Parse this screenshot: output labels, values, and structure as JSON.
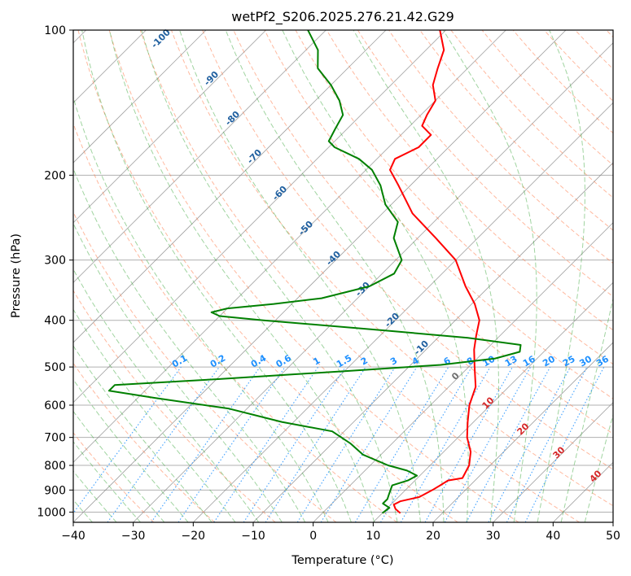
{
  "chart_data": {
    "type": "line",
    "subtype": "skew-t log-p diagram",
    "title": "wetPf2_S206.2025.276.21.42.G29",
    "xlabel": "Temperature (°C)",
    "ylabel": "Pressure (hPa)",
    "xlim": [
      -40,
      50
    ],
    "ylim": [
      1050,
      100
    ],
    "y_scale": "log",
    "x_ticks": [
      "−40",
      "−30",
      "−20",
      "−10",
      "0",
      "10",
      "20",
      "30",
      "40",
      "50"
    ],
    "x_tick_values": [
      -40,
      -30,
      -20,
      -10,
      0,
      10,
      20,
      30,
      40,
      50
    ],
    "y_ticks": [
      "100",
      "200",
      "300",
      "400",
      "500",
      "600",
      "700",
      "800",
      "900",
      "1000"
    ],
    "y_tick_values": [
      100,
      200,
      300,
      400,
      500,
      600,
      700,
      800,
      900,
      1000
    ],
    "grid": true,
    "colors": {
      "temperature": "#ff0000",
      "dewpoint": "#008000",
      "isotherm": "#808080",
      "dry_adiabat": "#ff7f50",
      "moist_adiabat": "#2ca02c",
      "mixing_ratio": "#1e90ff",
      "gridline": "#b0b0b0"
    },
    "series": [
      {
        "name": "",
        "role": "temperature",
        "points": [
          {
            "p": 1005,
            "t": 13
          },
          {
            "p": 985,
            "t": 11.5
          },
          {
            "p": 965,
            "t": 10.5
          },
          {
            "p": 950,
            "t": 11
          },
          {
            "p": 930,
            "t": 13.5
          },
          {
            "p": 900,
            "t": 14.5
          },
          {
            "p": 880,
            "t": 15
          },
          {
            "p": 860,
            "t": 15.5
          },
          {
            "p": 850,
            "t": 17.5
          },
          {
            "p": 800,
            "t": 16.5
          },
          {
            "p": 750,
            "t": 14.5
          },
          {
            "p": 700,
            "t": 11.5
          },
          {
            "p": 650,
            "t": 9
          },
          {
            "p": 600,
            "t": 6.5
          },
          {
            "p": 550,
            "t": 4.5
          },
          {
            "p": 500,
            "t": 1
          },
          {
            "p": 460,
            "t": -2
          },
          {
            "p": 430,
            "t": -4
          },
          {
            "p": 400,
            "t": -6
          },
          {
            "p": 370,
            "t": -9.5
          },
          {
            "p": 340,
            "t": -14
          },
          {
            "p": 300,
            "t": -20
          },
          {
            "p": 270,
            "t": -27
          },
          {
            "p": 240,
            "t": -35
          },
          {
            "p": 210,
            "t": -42
          },
          {
            "p": 195,
            "t": -46
          },
          {
            "p": 185,
            "t": -47
          },
          {
            "p": 175,
            "t": -45
          },
          {
            "p": 165,
            "t": -45
          },
          {
            "p": 158,
            "t": -48
          },
          {
            "p": 150,
            "t": -49
          },
          {
            "p": 140,
            "t": -50
          },
          {
            "p": 130,
            "t": -53
          },
          {
            "p": 120,
            "t": -55
          },
          {
            "p": 110,
            "t": -57
          },
          {
            "p": 100,
            "t": -61
          }
        ]
      },
      {
        "name": "",
        "role": "dewpoint",
        "points": [
          {
            "p": 1005,
            "t": 10
          },
          {
            "p": 980,
            "t": 10.3
          },
          {
            "p": 960,
            "t": 8.5
          },
          {
            "p": 940,
            "t": 8.5
          },
          {
            "p": 920,
            "t": 8
          },
          {
            "p": 900,
            "t": 7.5
          },
          {
            "p": 880,
            "t": 7
          },
          {
            "p": 860,
            "t": 8.8
          },
          {
            "p": 840,
            "t": 9.5
          },
          {
            "p": 820,
            "t": 7
          },
          {
            "p": 800,
            "t": 3
          },
          {
            "p": 760,
            "t": -3
          },
          {
            "p": 720,
            "t": -7
          },
          {
            "p": 680,
            "t": -12
          },
          {
            "p": 650,
            "t": -22
          },
          {
            "p": 610,
            "t": -33
          },
          {
            "p": 580,
            "t": -47
          },
          {
            "p": 560,
            "t": -56
          },
          {
            "p": 545,
            "t": -56
          },
          {
            "p": 530,
            "t": -40
          },
          {
            "p": 510,
            "t": -20
          },
          {
            "p": 495,
            "t": -5
          },
          {
            "p": 480,
            "t": 3
          },
          {
            "p": 465,
            "t": 6
          },
          {
            "p": 450,
            "t": 5
          },
          {
            "p": 435,
            "t": -5
          },
          {
            "p": 420,
            "t": -20
          },
          {
            "p": 400,
            "t": -42
          },
          {
            "p": 392,
            "t": -50
          },
          {
            "p": 385,
            "t": -52
          },
          {
            "p": 378,
            "t": -50
          },
          {
            "p": 370,
            "t": -43
          },
          {
            "p": 360,
            "t": -36
          },
          {
            "p": 340,
            "t": -30
          },
          {
            "p": 320,
            "t": -28
          },
          {
            "p": 300,
            "t": -29
          },
          {
            "p": 270,
            "t": -34
          },
          {
            "p": 250,
            "t": -36
          },
          {
            "p": 230,
            "t": -41
          },
          {
            "p": 210,
            "t": -45
          },
          {
            "p": 195,
            "t": -49
          },
          {
            "p": 185,
            "t": -53
          },
          {
            "p": 175,
            "t": -59
          },
          {
            "p": 170,
            "t": -61
          },
          {
            "p": 160,
            "t": -62
          },
          {
            "p": 150,
            "t": -63
          },
          {
            "p": 140,
            "t": -66
          },
          {
            "p": 130,
            "t": -70
          },
          {
            "p": 120,
            "t": -75
          },
          {
            "p": 110,
            "t": -78
          },
          {
            "p": 100,
            "t": -83
          }
        ]
      }
    ],
    "dry_adiabat_labels": [
      "0",
      "10",
      "20",
      "30",
      "40"
    ],
    "dry_adiabat_label_values": [
      0,
      10,
      20,
      30,
      40
    ],
    "moist_adiabat_labels": [
      "-100",
      "-90",
      "-80",
      "-70",
      "-60",
      "-50",
      "-40",
      "-30",
      "-20",
      "-10"
    ],
    "moist_adiabat_label_values": [
      -100,
      -90,
      -80,
      -70,
      -60,
      -50,
      -40,
      -30,
      -20,
      -10
    ],
    "mixing_ratio_labels": [
      "0.1",
      "0.2",
      "0.4",
      "0.6",
      "1",
      "1.5",
      "2",
      "3",
      "4",
      "6",
      "8",
      "10",
      "13",
      "16",
      "20",
      "25",
      "30",
      "36"
    ],
    "mixing_ratio_values": [
      0.1,
      0.2,
      0.4,
      0.6,
      1,
      1.5,
      2,
      3,
      4,
      6,
      8,
      10,
      13,
      16,
      20,
      25,
      30,
      36
    ]
  }
}
